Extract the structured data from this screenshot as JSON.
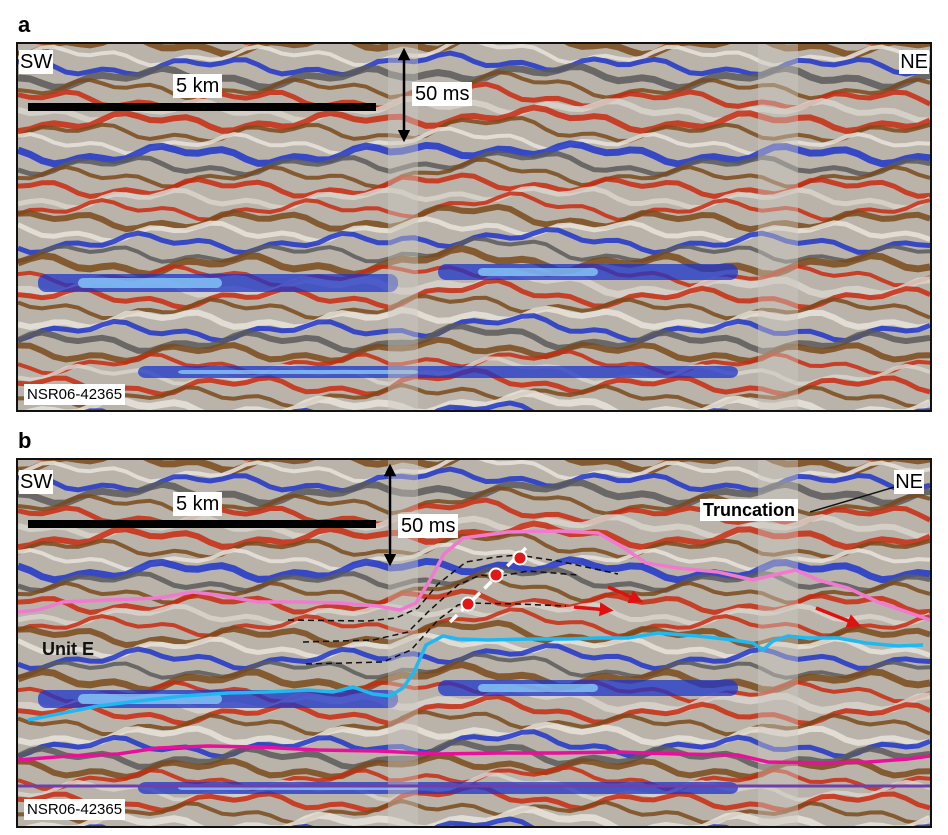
{
  "panels": [
    {
      "letter": "a",
      "labels": {
        "west": "SW",
        "east": "NE",
        "horizontal_scale": "5 km",
        "vertical_scale": "50 ms",
        "line_id": "NSR06-42365"
      }
    },
    {
      "letter": "b",
      "labels": {
        "west": "SW",
        "east": "NE",
        "horizontal_scale": "5 km",
        "vertical_scale": "50 ms",
        "line_id": "NSR06-42365",
        "unit": "Unit E",
        "annotation": "Truncation"
      }
    }
  ],
  "colors": {
    "background_grey": "#b9b3aa",
    "trough_blue": "#1f35c8",
    "light_blue": "#8fd8ff",
    "peak_red": "#c82a10",
    "brown": "#7a4a1c",
    "horizon_pink": "#f07ad0",
    "horizon_cyan": "#20b8f0",
    "horizon_magenta": "#e8109a",
    "horizon_purple": "#7040a8",
    "arrow_red": "#e01010",
    "clinoform_dash": "#111111",
    "trajectory_dash": "#ffffff"
  }
}
